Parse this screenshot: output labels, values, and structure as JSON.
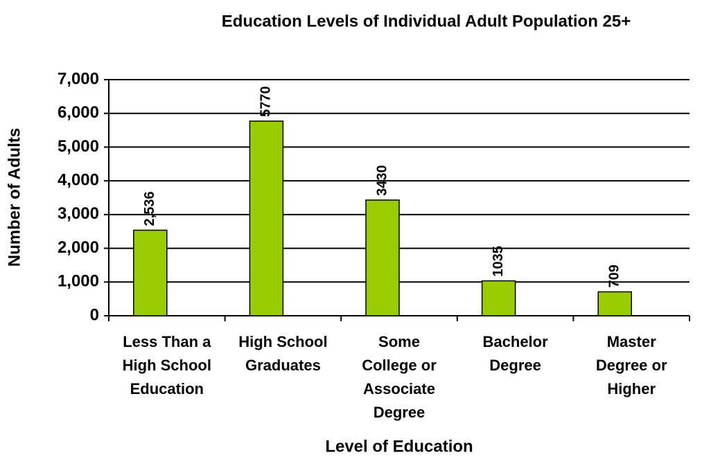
{
  "chart_data": {
    "type": "bar",
    "title": "Education Levels of Individual Adult Population 25+",
    "x_label": "Level of Education",
    "y_label": "Number of Adults",
    "categories": [
      "Less Than a High School Education",
      "High School Graduates",
      "Some College or Associate Degree",
      "Bachelor Degree",
      "Master Degree or Higher"
    ],
    "values": [
      2536,
      5770,
      3430,
      1035,
      709
    ],
    "value_labels": [
      "2,536",
      "5770",
      "3430",
      "1035",
      "709"
    ],
    "color": "#99cc00",
    "ylim": [
      0,
      7000
    ],
    "yticks": [
      {
        "value": 0,
        "label": "0"
      },
      {
        "value": 1000,
        "label": "1,000"
      },
      {
        "value": 2000,
        "label": "2,000"
      },
      {
        "value": 3000,
        "label": "3,000"
      },
      {
        "value": 4000,
        "label": "4,000"
      },
      {
        "value": 5000,
        "label": "5,000"
      },
      {
        "value": 6000,
        "label": "6,000"
      },
      {
        "value": 7000,
        "label": "7,000"
      }
    ],
    "grid": true
  }
}
